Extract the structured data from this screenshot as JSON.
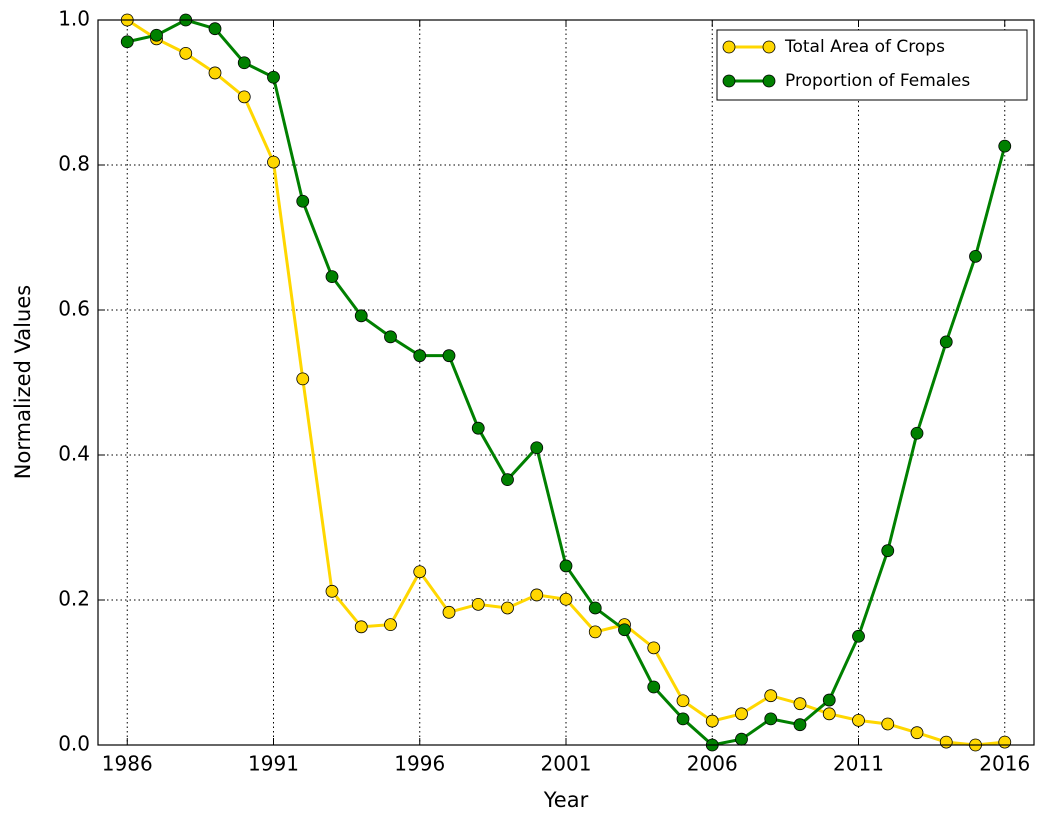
{
  "chart_data": {
    "type": "line",
    "xlabel": "Year",
    "ylabel": "Normalized Values",
    "x": [
      1986,
      1987,
      1988,
      1989,
      1990,
      1991,
      1992,
      1993,
      1994,
      1995,
      1996,
      1997,
      1998,
      1999,
      2000,
      2001,
      2002,
      2003,
      2004,
      2005,
      2006,
      2007,
      2008,
      2009,
      2010,
      2011,
      2012,
      2013,
      2014,
      2015,
      2016
    ],
    "series": [
      {
        "name": "Total Area of Crops",
        "color": "#ffd700",
        "values": [
          1.0,
          0.974,
          0.954,
          0.927,
          0.894,
          0.804,
          0.505,
          0.212,
          0.163,
          0.166,
          0.239,
          0.183,
          0.194,
          0.189,
          0.207,
          0.201,
          0.156,
          0.166,
          0.134,
          0.061,
          0.033,
          0.043,
          0.068,
          0.057,
          0.043,
          0.034,
          0.029,
          0.017,
          0.004,
          0,
          0.004
        ]
      },
      {
        "name": "Proportion of Females",
        "color": "#008000",
        "values": [
          0.97,
          0.979,
          1.0,
          0.988,
          0.941,
          0.921,
          0.75,
          0.646,
          0.592,
          0.563,
          0.537,
          0.537,
          0.437,
          0.366,
          0.41,
          0.247,
          0.189,
          0.159,
          0.08,
          0.036,
          0,
          0.008,
          0.036,
          0.028,
          0.062,
          0.15,
          0.268,
          0.43,
          0.556,
          0.674,
          0.826
        ]
      }
    ],
    "xlim": [
      1985,
      2017
    ],
    "xticks": [
      1986,
      1991,
      1996,
      2001,
      2006,
      2011,
      2016
    ],
    "ylim": [
      0,
      1
    ],
    "yticks": [
      {
        "value": 0,
        "label": "0.0"
      },
      0.2,
      0.4,
      0.6,
      0.8,
      {
        "value": 1,
        "label": "1.0"
      }
    ],
    "grid": true,
    "legend": "upper right"
  }
}
